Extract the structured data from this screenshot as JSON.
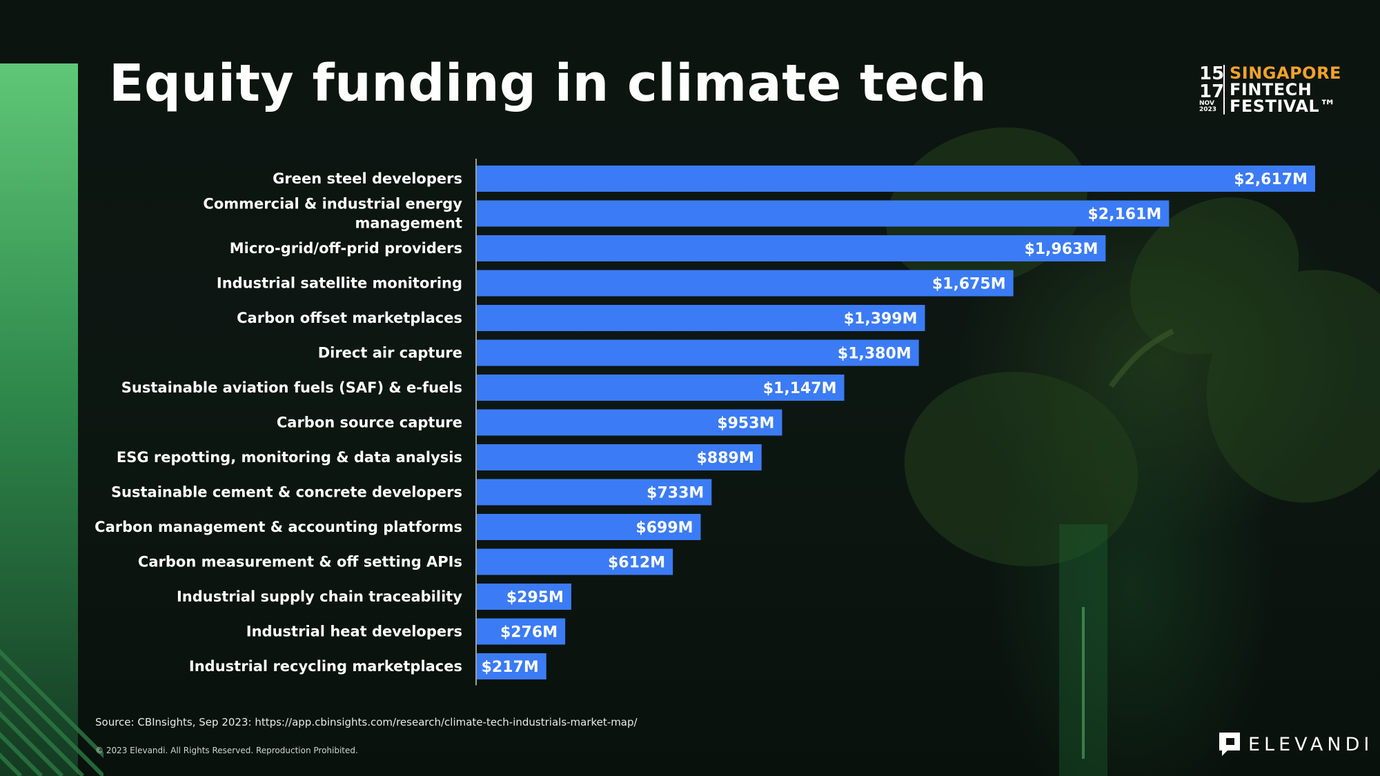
{
  "title": "Equity funding in climate tech",
  "event_logo": {
    "day_start": "15",
    "day_end": "17",
    "month": "NOV",
    "year": "2023",
    "line1": "SINGAPORE",
    "line2": "FINTECH",
    "line3": "FESTIVAL™"
  },
  "chart_data": {
    "type": "bar",
    "orientation": "horizontal",
    "categories": [
      "Green steel developers",
      "Commercial & industrial energy management",
      "Micro-grid/off-prid providers",
      "Industrial satellite monitoring",
      "Carbon offset marketplaces",
      "Direct air capture",
      "Sustainable aviation fuels (SAF) & e-fuels",
      "Carbon source capture",
      "ESG repotting, monitoring & data analysis",
      "Sustainable cement & concrete developers",
      "Carbon management & accounting platforms",
      "Carbon measurement & off setting APIs",
      "Industrial supply chain traceability",
      "Industrial heat developers",
      "Industrial recycling marketplaces"
    ],
    "category_lines": [
      [
        "Green steel developers"
      ],
      [
        "Commercial & industrial energy",
        "management"
      ],
      [
        "Micro-grid/off-prid providers"
      ],
      [
        "Industrial satellite monitoring"
      ],
      [
        "Carbon offset marketplaces"
      ],
      [
        "Direct air capture"
      ],
      [
        "Sustainable aviation fuels (SAF) & e-fuels"
      ],
      [
        "Carbon source capture"
      ],
      [
        "ESG repotting, monitoring & data analysis"
      ],
      [
        "Sustainable cement & concrete developers"
      ],
      [
        "Carbon management & accounting platforms"
      ],
      [
        "Carbon measurement & off setting APIs"
      ],
      [
        "Industrial supply chain traceability"
      ],
      [
        "Industrial heat developers"
      ],
      [
        "Industrial recycling marketplaces"
      ]
    ],
    "values": [
      2617,
      2161,
      1963,
      1675,
      1399,
      1380,
      1147,
      953,
      889,
      733,
      699,
      612,
      295,
      276,
      217
    ],
    "value_labels": [
      "$2,617M",
      "$2,161M",
      "$1,963M",
      "$1,675M",
      "$1,399M",
      "$1,380M",
      "$1,147M",
      "$953M",
      "$889M",
      "$733M",
      "$699M",
      "$612M",
      "$295M",
      "$276M",
      "$217M"
    ],
    "xlim": [
      0,
      2617
    ],
    "bar_color": "#3b7bf5",
    "label_color": "#ffffff",
    "grid": false,
    "legend": "none"
  },
  "source": "Source: CBInsights, Sep 2023: https://app.cbinsights.com/research/climate-tech-industrials-market-map/",
  "copyright": "© 2023 Elevandi. All Rights Reserved. Reproduction Prohibited.",
  "brand": {
    "name": "ELEVANDI",
    "icon": "elevandi-logo-icon"
  },
  "colors": {
    "accent_green": "#5fc777",
    "logo_orange": "#f2a22a"
  }
}
